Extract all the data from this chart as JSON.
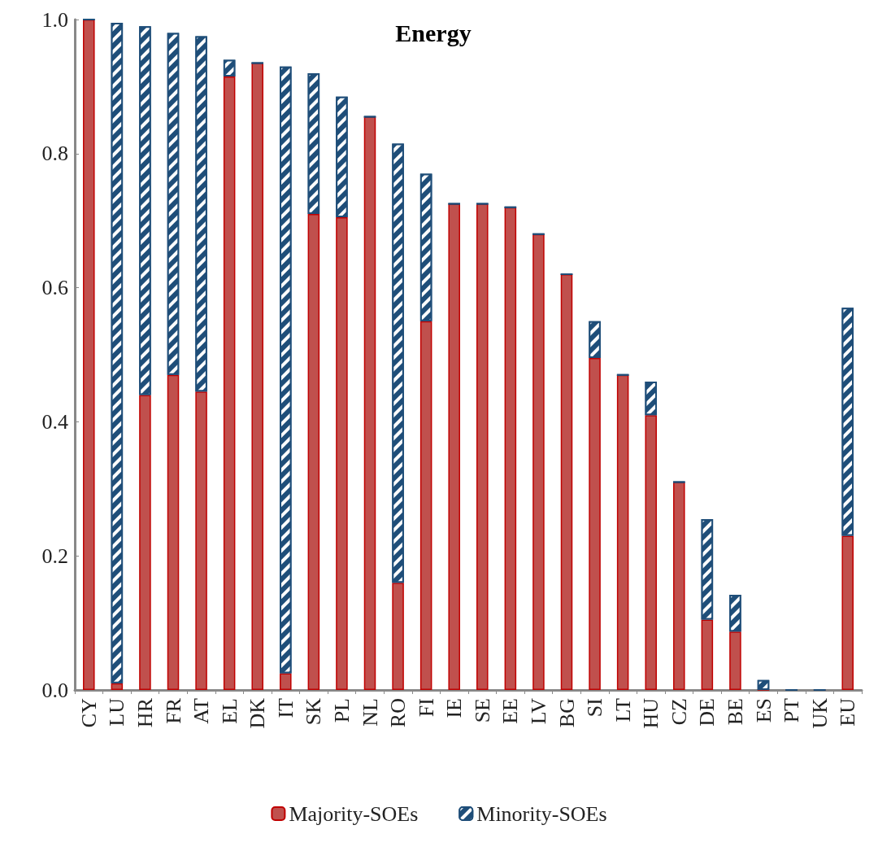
{
  "chart_data": {
    "type": "bar",
    "title": "Energy",
    "stacked": true,
    "legend": "bottom",
    "grid": false,
    "categories": [
      "CY",
      "LU",
      "HR",
      "FR",
      "AT",
      "EL",
      "DK",
      "IT",
      "SK",
      "PL",
      "NL",
      "RO",
      "FI",
      "IE",
      "SE",
      "EE",
      "LV",
      "BG",
      "SI",
      "LT",
      "HU",
      "CZ",
      "DE",
      "BE",
      "ES",
      "PT",
      "UK",
      "EU"
    ],
    "ylim": [
      0,
      1
    ],
    "yticks": [
      {
        "value": 0,
        "label": "0.0"
      },
      {
        "value": 0.2,
        "label": "0.2"
      },
      {
        "value": 0.4,
        "label": "0.4"
      },
      {
        "value": 0.6,
        "label": "0.6"
      },
      {
        "value": 0.8,
        "label": "0.8"
      },
      {
        "value": 1,
        "label": "1.0"
      }
    ],
    "series": [
      {
        "name": "Majority-SOEs",
        "color": "#c0504d",
        "values": [
          1.0,
          0.01,
          0.44,
          0.47,
          0.445,
          0.915,
          0.935,
          0.025,
          0.71,
          0.705,
          0.855,
          0.16,
          0.55,
          0.725,
          0.725,
          0.72,
          0.68,
          0.62,
          0.495,
          0.47,
          0.41,
          0.31,
          0.105,
          0.087,
          0,
          0,
          0,
          0.23
        ]
      },
      {
        "name": "Minority-SOEs",
        "color": "#1f4e79",
        "values": [
          0,
          0.985,
          0.55,
          0.51,
          0.53,
          0.025,
          0,
          0.905,
          0.21,
          0.18,
          0,
          0.655,
          0.22,
          0,
          0,
          0,
          0,
          0,
          0.055,
          0,
          0.05,
          0,
          0.15,
          0.055,
          0.015,
          0,
          0,
          0.34
        ]
      }
    ]
  }
}
